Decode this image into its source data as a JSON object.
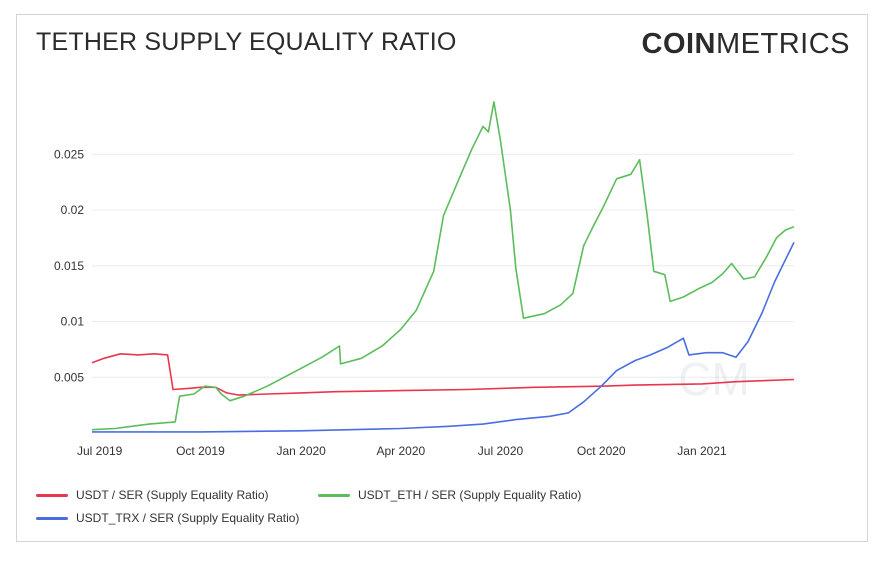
{
  "header": {
    "title": "TETHER SUPPLY EQUALITY RATIO",
    "logo_bold": "COIN",
    "logo_light": "METRICS"
  },
  "colors": {
    "usdt": "#e8364f",
    "usdt_eth": "#5cbd5c",
    "usdt_trx": "#4a6ee0",
    "grid": "#ececec"
  },
  "chart_data": {
    "type": "line",
    "title": "TETHER SUPPLY EQUALITY RATIO",
    "xlabel": "",
    "ylabel": "",
    "x_range": [
      "2019-06-24",
      "2021-03-26"
    ],
    "ylim": [
      0,
      0.03
    ],
    "y_ticks": [
      0.005,
      0.01,
      0.015,
      0.02,
      0.025
    ],
    "y_tick_labels": [
      "0.005",
      "0.01",
      "0.015",
      "0.02",
      "0.025"
    ],
    "x_ticks": [
      "2019-07-01",
      "2019-10-01",
      "2020-01-01",
      "2020-04-01",
      "2020-07-01",
      "2020-10-01",
      "2021-01-01"
    ],
    "x_tick_labels": [
      "Jul 2019",
      "Oct 2019",
      "Jan 2020",
      "Apr 2020",
      "Jul 2020",
      "Oct 2020",
      "Jan 2021"
    ],
    "grid": true,
    "legend_position": "bottom-left",
    "series": [
      {
        "name": "USDT / SER (Supply Equality Ratio)",
        "color": "#e8364f",
        "points": [
          [
            "2019-06-24",
            0.0063
          ],
          [
            "2019-07-05",
            0.0067
          ],
          [
            "2019-07-20",
            0.0071
          ],
          [
            "2019-08-05",
            0.007
          ],
          [
            "2019-08-20",
            0.0071
          ],
          [
            "2019-09-01",
            0.007
          ],
          [
            "2019-09-06",
            0.0039
          ],
          [
            "2019-09-20",
            0.004
          ],
          [
            "2019-10-01",
            0.0041
          ],
          [
            "2019-10-15",
            0.0041
          ],
          [
            "2019-10-25",
            0.0036
          ],
          [
            "2019-11-05",
            0.0034
          ],
          [
            "2019-12-01",
            0.0035
          ],
          [
            "2020-01-01",
            0.0036
          ],
          [
            "2020-02-01",
            0.0037
          ],
          [
            "2020-04-01",
            0.0038
          ],
          [
            "2020-06-01",
            0.0039
          ],
          [
            "2020-07-01",
            0.004
          ],
          [
            "2020-08-01",
            0.0041
          ],
          [
            "2020-10-01",
            0.0042
          ],
          [
            "2020-11-01",
            0.0043
          ],
          [
            "2021-01-01",
            0.0044
          ],
          [
            "2021-02-01",
            0.0046
          ],
          [
            "2021-03-26",
            0.0048
          ]
        ]
      },
      {
        "name": "USDT_ETH / SER (Supply Equality Ratio)",
        "color": "#5cbd5c",
        "points": [
          [
            "2019-06-24",
            0.0003
          ],
          [
            "2019-07-15",
            0.0004
          ],
          [
            "2019-08-15",
            0.0008
          ],
          [
            "2019-09-08",
            0.001
          ],
          [
            "2019-09-12",
            0.0033
          ],
          [
            "2019-09-25",
            0.0035
          ],
          [
            "2019-10-05",
            0.0042
          ],
          [
            "2019-10-15",
            0.0041
          ],
          [
            "2019-10-20",
            0.0035
          ],
          [
            "2019-10-28",
            0.0029
          ],
          [
            "2019-11-10",
            0.0033
          ],
          [
            "2019-12-01",
            0.0042
          ],
          [
            "2020-01-01",
            0.0058
          ],
          [
            "2020-01-20",
            0.0068
          ],
          [
            "2020-02-05",
            0.0078
          ],
          [
            "2020-02-06",
            0.0062
          ],
          [
            "2020-02-25",
            0.0067
          ],
          [
            "2020-03-15",
            0.0078
          ],
          [
            "2020-04-01",
            0.0093
          ],
          [
            "2020-04-15",
            0.011
          ],
          [
            "2020-05-01",
            0.0145
          ],
          [
            "2020-05-10",
            0.0195
          ],
          [
            "2020-05-25",
            0.023
          ],
          [
            "2020-06-05",
            0.0255
          ],
          [
            "2020-06-15",
            0.0275
          ],
          [
            "2020-06-20",
            0.027
          ],
          [
            "2020-06-25",
            0.0297
          ],
          [
            "2020-07-01",
            0.0262
          ],
          [
            "2020-07-10",
            0.02
          ],
          [
            "2020-07-15",
            0.0148
          ],
          [
            "2020-07-22",
            0.0103
          ],
          [
            "2020-08-10",
            0.0107
          ],
          [
            "2020-08-25",
            0.0115
          ],
          [
            "2020-09-05",
            0.0125
          ],
          [
            "2020-09-15",
            0.0168
          ],
          [
            "2020-09-25",
            0.0188
          ],
          [
            "2020-10-03",
            0.0203
          ],
          [
            "2020-10-15",
            0.0228
          ],
          [
            "2020-10-28",
            0.0232
          ],
          [
            "2020-11-05",
            0.0245
          ],
          [
            "2020-11-12",
            0.0195
          ],
          [
            "2020-11-18",
            0.0145
          ],
          [
            "2020-11-28",
            0.0142
          ],
          [
            "2020-12-03",
            0.0118
          ],
          [
            "2020-12-15",
            0.0122
          ],
          [
            "2020-12-30",
            0.013
          ],
          [
            "2021-01-10",
            0.0135
          ],
          [
            "2021-01-20",
            0.0143
          ],
          [
            "2021-01-28",
            0.0152
          ],
          [
            "2021-02-08",
            0.0138
          ],
          [
            "2021-02-18",
            0.014
          ],
          [
            "2021-03-01",
            0.0158
          ],
          [
            "2021-03-10",
            0.0175
          ],
          [
            "2021-03-18",
            0.0182
          ],
          [
            "2021-03-26",
            0.0185
          ]
        ]
      },
      {
        "name": "USDT_TRX / SER (Supply Equality Ratio)",
        "color": "#4a6ee0",
        "points": [
          [
            "2019-06-24",
            0.0001
          ],
          [
            "2019-10-01",
            0.0001
          ],
          [
            "2020-01-01",
            0.0002
          ],
          [
            "2020-04-01",
            0.0004
          ],
          [
            "2020-05-15",
            0.0006
          ],
          [
            "2020-06-15",
            0.0008
          ],
          [
            "2020-07-15",
            0.0012
          ],
          [
            "2020-08-15",
            0.0015
          ],
          [
            "2020-09-01",
            0.0018
          ],
          [
            "2020-09-15",
            0.0028
          ],
          [
            "2020-10-01",
            0.0042
          ],
          [
            "2020-10-15",
            0.0056
          ],
          [
            "2020-11-01",
            0.0065
          ],
          [
            "2020-11-15",
            0.007
          ],
          [
            "2020-12-01",
            0.0077
          ],
          [
            "2020-12-15",
            0.0085
          ],
          [
            "2020-12-20",
            0.007
          ],
          [
            "2021-01-05",
            0.0072
          ],
          [
            "2021-01-20",
            0.0072
          ],
          [
            "2021-02-01",
            0.0068
          ],
          [
            "2021-02-12",
            0.0082
          ],
          [
            "2021-02-25",
            0.0108
          ],
          [
            "2021-03-08",
            0.0135
          ],
          [
            "2021-03-18",
            0.0155
          ],
          [
            "2021-03-26",
            0.0171
          ]
        ]
      }
    ]
  }
}
